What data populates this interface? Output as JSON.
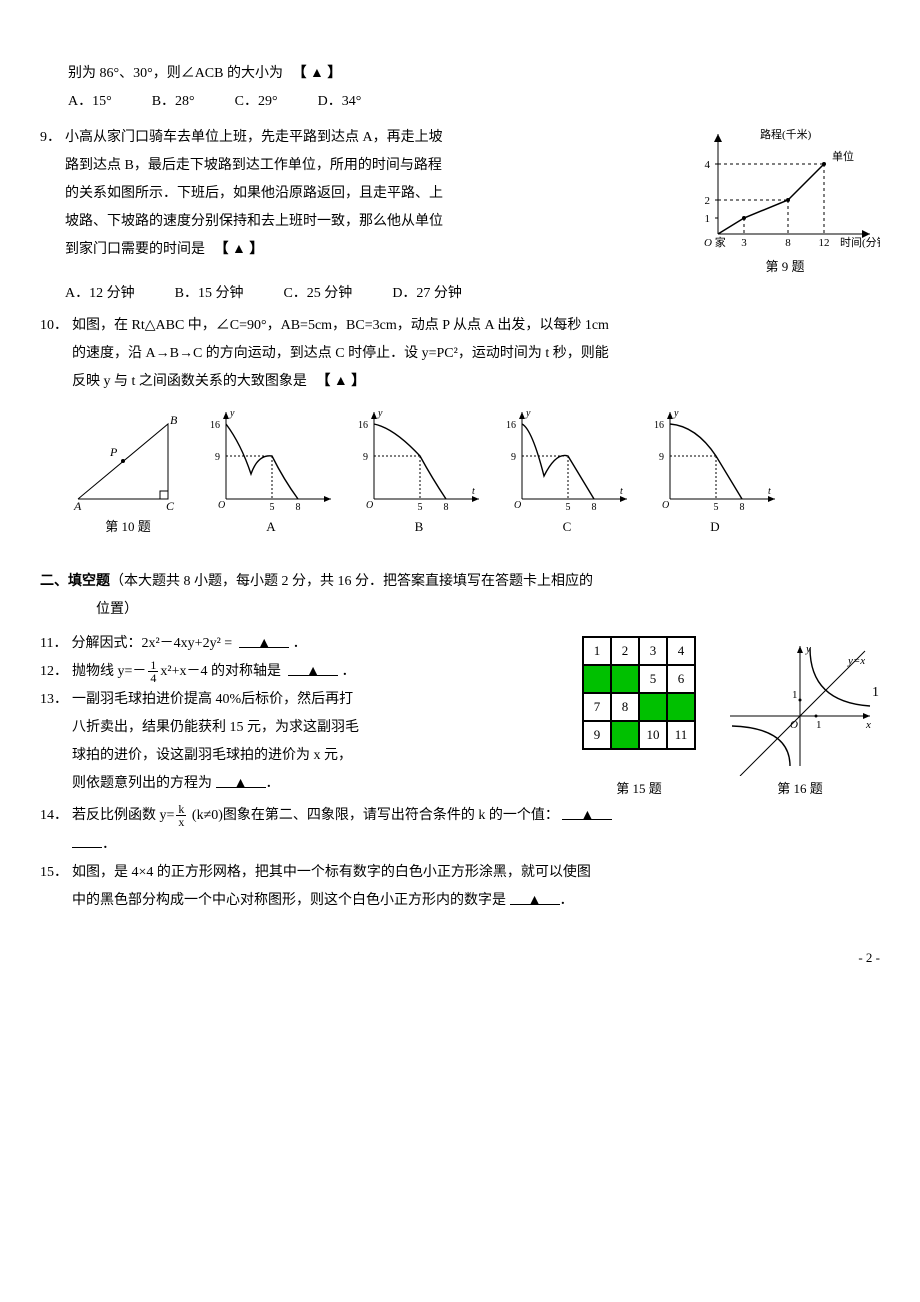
{
  "page": {
    "footer": "- 2 -"
  },
  "q8": {
    "stem_tail": "别为 86°、30°，则∠ACB 的大小为",
    "options": {
      "A": "A．15°",
      "B": "B．28°",
      "C": "C．29°",
      "D": "D．34°"
    }
  },
  "q9": {
    "num": "9．",
    "lines": [
      "小高从家门口骑车去单位上班，先走平路到达点 A，再走上坡",
      "路到达点 B，最后走下坡路到达工作单位，所用的时间与路程",
      "的关系如图所示．下班后，如果他沿原路返回，且走平路、上",
      "坡路、下坡路的速度分别保持和去上班时一致，那么他从单位",
      "到家门口需要的时间是"
    ],
    "options": {
      "A": "A．12 分钟",
      "B": "B．15 分钟",
      "C": "C．25 分钟",
      "D": "D．27 分钟"
    },
    "fig": {
      "label": "第 9 题",
      "y_label": "路程(千米)",
      "x_label": "时间(分钟)",
      "end_label": "单位",
      "origin_label": "O 家",
      "y_ticks": [
        "1",
        "2",
        "4"
      ],
      "x_ticks": [
        "3",
        "8",
        "12"
      ],
      "points": [
        [
          0,
          0
        ],
        [
          3,
          1
        ],
        [
          8,
          2
        ],
        [
          12,
          4
        ]
      ],
      "xlim": [
        0,
        14
      ],
      "ylim": [
        0,
        5
      ],
      "stroke": "#000000"
    }
  },
  "q10": {
    "num": "10．",
    "line1_a": "如图，在 Rt△ABC 中，∠C=90°，AB=5cm，BC=3cm，动点 P 从点 A 出发，以每秒 1cm",
    "line2": "的速度，沿 A→B→C 的方向运动，到达点 C 时停止．设 y=PC²，运动时间为 t 秒，则能",
    "line3": "反映 y 与 t 之间函数关系的大致图象是",
    "fig_label": "第 10 题",
    "triangle": {
      "A": "A",
      "B": "B",
      "C": "C",
      "P": "P"
    },
    "axes": {
      "y_ticks": [
        "9",
        "16"
      ],
      "x_ticks": [
        "5",
        "8"
      ],
      "xlabel": "t",
      "ylabel": "y",
      "origin": "O"
    },
    "options": {
      "A": "A",
      "B": "B",
      "C": "C",
      "D": "D"
    }
  },
  "section2": {
    "title": "二、填空题",
    "desc": "（本大题共 8 小题，每小题 2 分，共 16 分．把答案直接填写在答题卡上相应的",
    "desc2": "位置）"
  },
  "q11": {
    "num": "11．",
    "text_a": "分解因式：2x²－4xy+2y² ="
  },
  "q12": {
    "num": "12．",
    "text_a": "抛物线 y=－",
    "frac_num": "1",
    "frac_den": "4",
    "text_b": "x²+x－4 的对称轴是"
  },
  "q13": {
    "num": "13．",
    "l1": "一副羽毛球拍进价提高 40%后标价，然后再打",
    "l2": "八折卖出，结果仍能获利 15 元，为求这副羽毛",
    "l3": "球拍的进价，设这副羽毛球拍的进价为 x 元，",
    "l4": "则依题意列出的方程为"
  },
  "q14": {
    "num": "14．",
    "a": "若反比例函数 y=",
    "frac_num": "k",
    "frac_den": "x",
    "b": " (k≠0)图象在第二、四象限，请写出符合条件的 k 的一个值："
  },
  "q15": {
    "num": "15．",
    "l1": "如图，是 4×4 的正方形网格，把其中一个标有数字的白色小正方形涂黑，就可以使图",
    "l2": "中的黑色部分构成一个中心对称图形，则这个白色小正方形内的数字是",
    "fig_label": "第 15 题",
    "cells": [
      {
        "t": "1",
        "c": "#ffffff"
      },
      {
        "t": "2",
        "c": "#ffffff"
      },
      {
        "t": "3",
        "c": "#ffffff"
      },
      {
        "t": "4",
        "c": "#ffffff"
      },
      {
        "t": "",
        "c": "#00c000"
      },
      {
        "t": "",
        "c": "#00c000"
      },
      {
        "t": "5",
        "c": "#ffffff"
      },
      {
        "t": "6",
        "c": "#ffffff"
      },
      {
        "t": "7",
        "c": "#ffffff"
      },
      {
        "t": "8",
        "c": "#ffffff"
      },
      {
        "t": "",
        "c": "#00c000"
      },
      {
        "t": "",
        "c": "#00c000"
      },
      {
        "t": "9",
        "c": "#ffffff"
      },
      {
        "t": "",
        "c": "#00c000"
      },
      {
        "t": "10",
        "c": "#ffffff"
      },
      {
        "t": "11",
        "c": "#ffffff"
      }
    ]
  },
  "q16": {
    "fig_label": "第 16 题",
    "yx_label": "y=x",
    "axes": {
      "x": "x",
      "y": "y",
      "O": "O",
      "one": "1"
    }
  },
  "placeholder_text": "▲"
}
